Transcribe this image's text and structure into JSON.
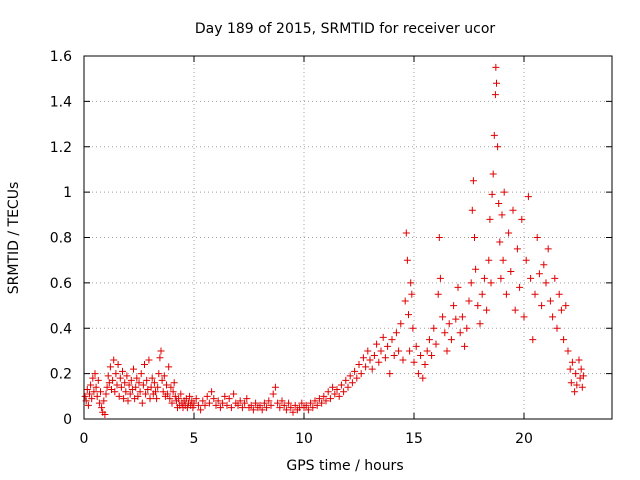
{
  "chart_data": {
    "type": "scatter",
    "title": "Day 189 of 2015, SRMTID for receiver ucor",
    "xlabel": "GPS time / hours",
    "ylabel": "SRMTID / TECUs",
    "xlim": [
      0,
      24
    ],
    "ylim": [
      0,
      1.6
    ],
    "xticks": [
      0,
      5,
      10,
      15,
      20
    ],
    "xtick_labels": [
      "0",
      "5",
      "10",
      "15",
      "20"
    ],
    "yticks": [
      0,
      0.2,
      0.4,
      0.6,
      0.8,
      1.0,
      1.2,
      1.4,
      1.6
    ],
    "ytick_labels": [
      "0",
      "0.2",
      "0.4",
      "0.6",
      "0.8",
      "1",
      "1.2",
      "1.4",
      "1.6"
    ],
    "grid": true,
    "marker": "+",
    "color": "#e00000",
    "series": [
      {
        "name": "SRMTID",
        "points": [
          [
            0.05,
            0.1
          ],
          [
            0.1,
            0.08
          ],
          [
            0.15,
            0.13
          ],
          [
            0.2,
            0.06
          ],
          [
            0.25,
            0.11
          ],
          [
            0.3,
            0.15
          ],
          [
            0.35,
            0.09
          ],
          [
            0.4,
            0.18
          ],
          [
            0.45,
            0.12
          ],
          [
            0.5,
            0.2
          ],
          [
            0.55,
            0.14
          ],
          [
            0.6,
            0.1
          ],
          [
            0.65,
            0.17
          ],
          [
            0.7,
            0.07
          ],
          [
            0.75,
            0.12
          ],
          [
            0.8,
            0.05
          ],
          [
            0.85,
            0.03
          ],
          [
            0.9,
            0.08
          ],
          [
            0.95,
            0.02
          ],
          [
            1.0,
            0.11
          ],
          [
            1.05,
            0.14
          ],
          [
            1.1,
            0.19
          ],
          [
            1.15,
            0.16
          ],
          [
            1.2,
            0.23
          ],
          [
            1.25,
            0.13
          ],
          [
            1.3,
            0.17
          ],
          [
            1.35,
            0.26
          ],
          [
            1.4,
            0.12
          ],
          [
            1.45,
            0.2
          ],
          [
            1.5,
            0.15
          ],
          [
            1.55,
            0.24
          ],
          [
            1.6,
            0.1
          ],
          [
            1.65,
            0.18
          ],
          [
            1.7,
            0.14
          ],
          [
            1.75,
            0.21
          ],
          [
            1.8,
            0.09
          ],
          [
            1.85,
            0.16
          ],
          [
            1.9,
            0.12
          ],
          [
            1.95,
            0.19
          ],
          [
            2.0,
            0.08
          ],
          [
            2.05,
            0.15
          ],
          [
            2.1,
            0.11
          ],
          [
            2.15,
            0.17
          ],
          [
            2.2,
            0.13
          ],
          [
            2.25,
            0.22
          ],
          [
            2.3,
            0.09
          ],
          [
            2.35,
            0.14
          ],
          [
            2.4,
            0.18
          ],
          [
            2.45,
            0.1
          ],
          [
            2.5,
            0.16
          ],
          [
            2.55,
            0.12
          ],
          [
            2.6,
            0.2
          ],
          [
            2.65,
            0.07
          ],
          [
            2.7,
            0.15
          ],
          [
            2.75,
            0.24
          ],
          [
            2.8,
            0.11
          ],
          [
            2.85,
            0.17
          ],
          [
            2.9,
            0.13
          ],
          [
            2.95,
            0.26
          ],
          [
            3.0,
            0.09
          ],
          [
            3.05,
            0.14
          ],
          [
            3.1,
            0.18
          ],
          [
            3.15,
            0.11
          ],
          [
            3.2,
            0.16
          ],
          [
            3.25,
            0.12
          ],
          [
            3.3,
            0.09
          ],
          [
            3.35,
            0.14
          ],
          [
            3.4,
            0.2
          ],
          [
            3.45,
            0.27
          ],
          [
            3.5,
            0.3
          ],
          [
            3.55,
            0.17
          ],
          [
            3.6,
            0.12
          ],
          [
            3.65,
            0.19
          ],
          [
            3.7,
            0.1
          ],
          [
            3.75,
            0.15
          ],
          [
            3.8,
            0.11
          ],
          [
            3.85,
            0.23
          ],
          [
            3.9,
            0.09
          ],
          [
            3.95,
            0.14
          ],
          [
            4.0,
            0.07
          ],
          [
            4.05,
            0.12
          ],
          [
            4.1,
            0.16
          ],
          [
            4.15,
            0.1
          ],
          [
            4.2,
            0.08
          ],
          [
            4.25,
            0.05
          ],
          [
            4.3,
            0.09
          ],
          [
            4.35,
            0.06
          ],
          [
            4.4,
            0.11
          ],
          [
            4.45,
            0.07
          ],
          [
            4.5,
            0.05
          ],
          [
            4.55,
            0.08
          ],
          [
            4.6,
            0.06
          ],
          [
            4.65,
            0.09
          ],
          [
            4.7,
            0.05
          ],
          [
            4.75,
            0.07
          ],
          [
            4.8,
            0.1
          ],
          [
            4.85,
            0.06
          ],
          [
            4.9,
            0.08
          ],
          [
            4.95,
            0.05
          ],
          [
            5.0,
            0.07
          ],
          [
            5.1,
            0.09
          ],
          [
            5.2,
            0.06
          ],
          [
            5.3,
            0.04
          ],
          [
            5.4,
            0.08
          ],
          [
            5.5,
            0.06
          ],
          [
            5.6,
            0.1
          ],
          [
            5.7,
            0.07
          ],
          [
            5.8,
            0.12
          ],
          [
            5.9,
            0.09
          ],
          [
            6.0,
            0.06
          ],
          [
            6.1,
            0.08
          ],
          [
            6.2,
            0.05
          ],
          [
            6.3,
            0.07
          ],
          [
            6.4,
            0.1
          ],
          [
            6.5,
            0.06
          ],
          [
            6.6,
            0.09
          ],
          [
            6.7,
            0.05
          ],
          [
            6.8,
            0.11
          ],
          [
            6.9,
            0.07
          ],
          [
            7.0,
            0.06
          ],
          [
            7.1,
            0.08
          ],
          [
            7.2,
            0.05
          ],
          [
            7.3,
            0.07
          ],
          [
            7.4,
            0.09
          ],
          [
            7.5,
            0.05
          ],
          [
            7.6,
            0.06
          ],
          [
            7.7,
            0.04
          ],
          [
            7.8,
            0.07
          ],
          [
            7.9,
            0.05
          ],
          [
            8.0,
            0.06
          ],
          [
            8.1,
            0.04
          ],
          [
            8.2,
            0.07
          ],
          [
            8.3,
            0.05
          ],
          [
            8.4,
            0.08
          ],
          [
            8.5,
            0.06
          ],
          [
            8.6,
            0.11
          ],
          [
            8.7,
            0.14
          ],
          [
            8.8,
            0.07
          ],
          [
            8.9,
            0.05
          ],
          [
            9.0,
            0.08
          ],
          [
            9.1,
            0.06
          ],
          [
            9.2,
            0.04
          ],
          [
            9.3,
            0.07
          ],
          [
            9.4,
            0.05
          ],
          [
            9.5,
            0.03
          ],
          [
            9.6,
            0.06
          ],
          [
            9.7,
            0.04
          ],
          [
            9.8,
            0.05
          ],
          [
            9.9,
            0.07
          ],
          [
            10.0,
            0.05
          ],
          [
            10.1,
            0.06
          ],
          [
            10.2,
            0.04
          ],
          [
            10.3,
            0.07
          ],
          [
            10.4,
            0.05
          ],
          [
            10.5,
            0.08
          ],
          [
            10.6,
            0.06
          ],
          [
            10.7,
            0.09
          ],
          [
            10.8,
            0.07
          ],
          [
            10.9,
            0.1
          ],
          [
            11.0,
            0.08
          ],
          [
            11.1,
            0.12
          ],
          [
            11.2,
            0.09
          ],
          [
            11.3,
            0.14
          ],
          [
            11.4,
            0.11
          ],
          [
            11.5,
            0.13
          ],
          [
            11.6,
            0.1
          ],
          [
            11.7,
            0.15
          ],
          [
            11.8,
            0.12
          ],
          [
            11.9,
            0.17
          ],
          [
            12.0,
            0.14
          ],
          [
            12.1,
            0.19
          ],
          [
            12.2,
            0.16
          ],
          [
            12.3,
            0.21
          ],
          [
            12.4,
            0.18
          ],
          [
            12.5,
            0.24
          ],
          [
            12.6,
            0.2
          ],
          [
            12.7,
            0.27
          ],
          [
            12.8,
            0.23
          ],
          [
            12.9,
            0.3
          ],
          [
            13.0,
            0.26
          ],
          [
            13.1,
            0.22
          ],
          [
            13.2,
            0.28
          ],
          [
            13.3,
            0.33
          ],
          [
            13.4,
            0.25
          ],
          [
            13.5,
            0.3
          ],
          [
            13.6,
            0.36
          ],
          [
            13.7,
            0.27
          ],
          [
            13.8,
            0.32
          ],
          [
            13.9,
            0.2
          ],
          [
            14.0,
            0.35
          ],
          [
            14.1,
            0.28
          ],
          [
            14.2,
            0.38
          ],
          [
            14.3,
            0.3
          ],
          [
            14.4,
            0.42
          ],
          [
            14.5,
            0.26
          ],
          [
            14.6,
            0.52
          ],
          [
            14.65,
            0.82
          ],
          [
            14.7,
            0.7
          ],
          [
            14.75,
            0.46
          ],
          [
            14.8,
            0.3
          ],
          [
            14.85,
            0.6
          ],
          [
            14.9,
            0.55
          ],
          [
            14.95,
            0.4
          ],
          [
            15.0,
            0.25
          ],
          [
            15.1,
            0.32
          ],
          [
            15.2,
            0.2
          ],
          [
            15.3,
            0.28
          ],
          [
            15.4,
            0.18
          ],
          [
            15.5,
            0.24
          ],
          [
            15.6,
            0.3
          ],
          [
            15.7,
            0.35
          ],
          [
            15.8,
            0.28
          ],
          [
            15.9,
            0.4
          ],
          [
            16.0,
            0.33
          ],
          [
            16.1,
            0.55
          ],
          [
            16.15,
            0.8
          ],
          [
            16.2,
            0.62
          ],
          [
            16.3,
            0.45
          ],
          [
            16.4,
            0.38
          ],
          [
            16.5,
            0.3
          ],
          [
            16.6,
            0.42
          ],
          [
            16.7,
            0.35
          ],
          [
            16.8,
            0.5
          ],
          [
            16.9,
            0.44
          ],
          [
            17.0,
            0.58
          ],
          [
            17.1,
            0.38
          ],
          [
            17.2,
            0.45
          ],
          [
            17.3,
            0.32
          ],
          [
            17.4,
            0.4
          ],
          [
            17.5,
            0.52
          ],
          [
            17.6,
            0.6
          ],
          [
            17.65,
            0.92
          ],
          [
            17.7,
            1.05
          ],
          [
            17.75,
            0.8
          ],
          [
            17.8,
            0.66
          ],
          [
            17.9,
            0.5
          ],
          [
            18.0,
            0.42
          ],
          [
            18.1,
            0.55
          ],
          [
            18.2,
            0.62
          ],
          [
            18.3,
            0.48
          ],
          [
            18.4,
            0.7
          ],
          [
            18.45,
            0.88
          ],
          [
            18.5,
            0.6
          ],
          [
            18.55,
            0.99
          ],
          [
            18.6,
            1.08
          ],
          [
            18.65,
            1.25
          ],
          [
            18.7,
            1.43
          ],
          [
            18.72,
            1.55
          ],
          [
            18.75,
            1.48
          ],
          [
            18.8,
            1.2
          ],
          [
            18.85,
            0.95
          ],
          [
            18.9,
            0.78
          ],
          [
            18.95,
            0.62
          ],
          [
            19.0,
            0.9
          ],
          [
            19.05,
            0.7
          ],
          [
            19.1,
            1.0
          ],
          [
            19.2,
            0.55
          ],
          [
            19.3,
            0.82
          ],
          [
            19.4,
            0.65
          ],
          [
            19.5,
            0.92
          ],
          [
            19.6,
            0.48
          ],
          [
            19.7,
            0.75
          ],
          [
            19.8,
            0.58
          ],
          [
            19.9,
            0.88
          ],
          [
            20.0,
            0.45
          ],
          [
            20.1,
            0.7
          ],
          [
            20.2,
            0.98
          ],
          [
            20.3,
            0.62
          ],
          [
            20.4,
            0.35
          ],
          [
            20.5,
            0.55
          ],
          [
            20.6,
            0.8
          ],
          [
            20.7,
            0.64
          ],
          [
            20.8,
            0.5
          ],
          [
            20.9,
            0.68
          ],
          [
            21.0,
            0.6
          ],
          [
            21.1,
            0.75
          ],
          [
            21.2,
            0.52
          ],
          [
            21.3,
            0.45
          ],
          [
            21.4,
            0.62
          ],
          [
            21.5,
            0.4
          ],
          [
            21.6,
            0.55
          ],
          [
            21.7,
            0.48
          ],
          [
            21.8,
            0.35
          ],
          [
            21.9,
            0.5
          ],
          [
            22.0,
            0.3
          ],
          [
            22.1,
            0.22
          ],
          [
            22.15,
            0.16
          ],
          [
            22.2,
            0.25
          ],
          [
            22.3,
            0.12
          ],
          [
            22.35,
            0.2
          ],
          [
            22.4,
            0.15
          ],
          [
            22.5,
            0.26
          ],
          [
            22.55,
            0.18
          ],
          [
            22.6,
            0.22
          ],
          [
            22.65,
            0.14
          ],
          [
            22.7,
            0.19
          ]
        ]
      }
    ]
  }
}
